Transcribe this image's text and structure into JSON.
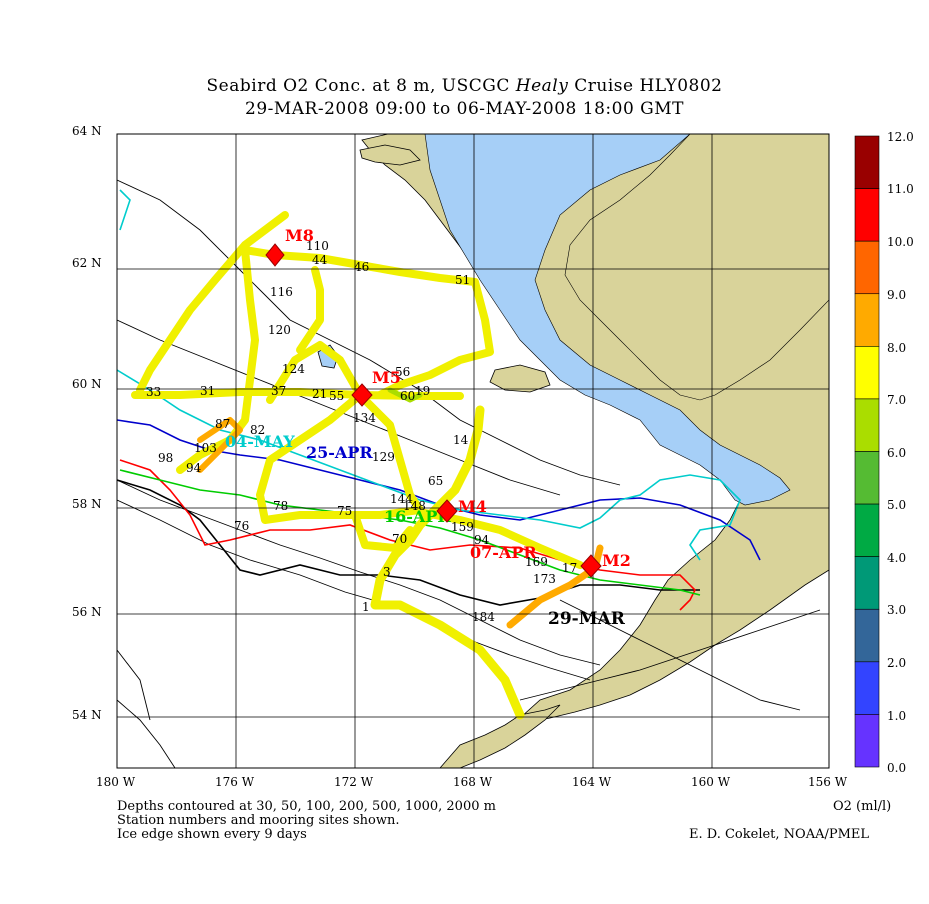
{
  "title": {
    "line1_prefix": "Seabird O2 Conc. at 8 m, USCGC ",
    "line1_ship": "Healy",
    "line1_suffix": " Cruise HLY0802",
    "line2": "29-MAR-2008 09:00 to 06-MAY-2008 18:00 GMT"
  },
  "axes": {
    "lat_labels": [
      "64 N",
      "62 N",
      "60 N",
      "58 N",
      "56 N",
      "54 N"
    ],
    "lon_labels": [
      "180 W",
      "176 W",
      "172 W",
      "168 W",
      "164 W",
      "160 W",
      "156 W"
    ]
  },
  "colorbar": {
    "unit_label": "O2 (ml/l)",
    "ticks": [
      "12.0",
      "11.0",
      "10.0",
      "9.0",
      "8.0",
      "7.0",
      "6.0",
      "5.0",
      "4.0",
      "3.0",
      "2.0",
      "1.0",
      "0.0"
    ],
    "colors": [
      "#990000",
      "#ff0000",
      "#ff6600",
      "#ffaa00",
      "#ffff00",
      "#aadd00",
      "#55bb33",
      "#00aa44",
      "#009977",
      "#336699",
      "#3344ff",
      "#6633ff",
      "#cc00ff"
    ]
  },
  "moorings": [
    {
      "name": "M8",
      "lon": -174.75,
      "lat": 62.2
    },
    {
      "name": "M5",
      "lon": -171.9,
      "lat": 59.9
    },
    {
      "name": "M4",
      "lon": -168.9,
      "lat": 57.9
    },
    {
      "name": "M2",
      "lon": -164.1,
      "lat": 56.9
    }
  ],
  "ice_edge_labels": [
    {
      "text": "29-MAR",
      "color": "#000000"
    },
    {
      "text": "07-APR",
      "color": "#ff0000"
    },
    {
      "text": "16-APR",
      "color": "#00cc00"
    },
    {
      "text": "25-APR",
      "color": "#0000cc"
    },
    {
      "text": "04-MAY",
      "color": "#00cccc"
    }
  ],
  "station_labels": [
    "110",
    "44",
    "46",
    "51",
    "116",
    "120",
    "124",
    "33",
    "31",
    "37",
    "21",
    "55",
    "60",
    "134",
    "14",
    "129",
    "103",
    "98",
    "94",
    "87",
    "82",
    "78",
    "76",
    "75",
    "144",
    "148",
    "159",
    "65",
    "70",
    "3",
    "1",
    "184",
    "169",
    "173",
    "17",
    "56",
    "19",
    "94"
  ],
  "footer": {
    "line1": "Depths contoured at 30, 50, 100, 200, 500, 1000, 2000 m",
    "line2": "Station numbers and mooring sites shown.",
    "line3": "Ice edge shown every 9 days",
    "credit": "E. D. Cokelet, NOAA/PMEL"
  },
  "map_colors": {
    "land": "#d9d39a",
    "water_fresh": "#a6cff7",
    "track_yellow": "#f0f000",
    "track_orange": "#ffaa00"
  }
}
